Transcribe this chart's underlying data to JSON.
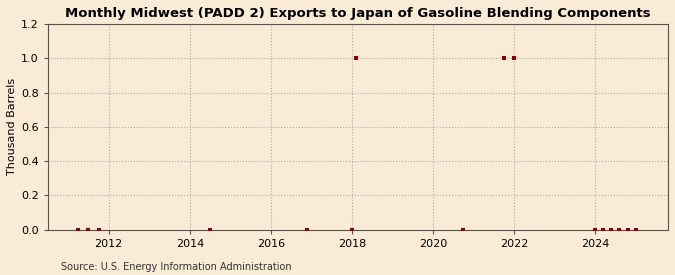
{
  "title": "Monthly Midwest (PADD 2) Exports to Japan of Gasoline Blending Components",
  "ylabel": "Thousand Barrels",
  "source": "Source: U.S. Energy Information Administration",
  "background_color": "#faebd7",
  "grid_color": "#aaaaaa",
  "marker_color": "#8b0000",
  "ylim": [
    0,
    1.2
  ],
  "yticks": [
    0.0,
    0.2,
    0.4,
    0.6,
    0.8,
    1.0,
    1.2
  ],
  "xlim_start": 2010.5,
  "xlim_end": 2025.8,
  "xticks": [
    2012,
    2014,
    2016,
    2018,
    2020,
    2022,
    2024
  ],
  "data_points": [
    [
      2011.25,
      0.0
    ],
    [
      2011.5,
      0.0
    ],
    [
      2011.75,
      0.0
    ],
    [
      2014.5,
      0.0
    ],
    [
      2016.9,
      0.0
    ],
    [
      2018.0,
      0.0
    ],
    [
      2018.1,
      1.0
    ],
    [
      2020.75,
      0.0
    ],
    [
      2021.75,
      1.0
    ],
    [
      2022.0,
      1.0
    ],
    [
      2024.0,
      0.0
    ],
    [
      2024.2,
      0.0
    ],
    [
      2024.4,
      0.0
    ],
    [
      2024.6,
      0.0
    ],
    [
      2024.8,
      0.0
    ],
    [
      2025.0,
      0.0
    ]
  ]
}
